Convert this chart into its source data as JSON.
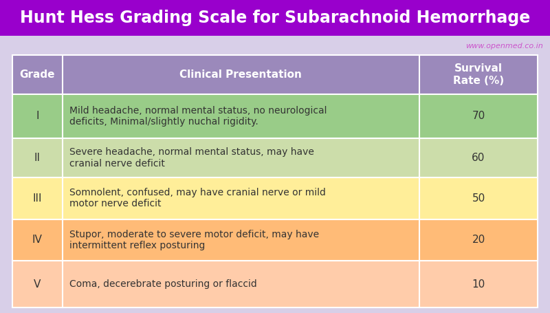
{
  "title": "Hunt Hess Grading Scale for Subarachnoid Hemorrhage",
  "title_bg": "#9900cc",
  "title_color": "#ffffff",
  "subtitle": "www.openmed.co.in",
  "subtitle_color": "#cc55cc",
  "bg_color": "#d8cfe8",
  "header_bg": "#9b89bb",
  "header_color": "#ffffff",
  "col_headers": [
    "Grade",
    "Clinical Presentation",
    "Survival\nRate (%)"
  ],
  "rows": [
    {
      "grade": "I",
      "description": "Mild headache, normal mental status, no neurological\ndeficits, Minimal/slightly nuchal rigidity.",
      "survival": "70",
      "row_color": "#99cc88"
    },
    {
      "grade": "II",
      "description": "Severe headache, normal mental status, may have\ncranial nerve deficit",
      "survival": "60",
      "row_color": "#ccddaa"
    },
    {
      "grade": "III",
      "description": "Somnolent, confused, may have cranial nerve or mild\nmotor nerve deficit",
      "survival": "50",
      "row_color": "#ffee99"
    },
    {
      "grade": "IV",
      "description": "Stupor, moderate to severe motor deficit, may have\nintermittent reflex posturing",
      "survival": "20",
      "row_color": "#ffbb77"
    },
    {
      "grade": "V",
      "description": "Coma, decerebrate posturing or flaccid",
      "survival": "10",
      "row_color": "#ffccaa"
    }
  ],
  "text_color": "#333333",
  "title_fontsize": 17,
  "header_fontsize": 11,
  "body_fontsize": 10,
  "grade_fontsize": 11
}
